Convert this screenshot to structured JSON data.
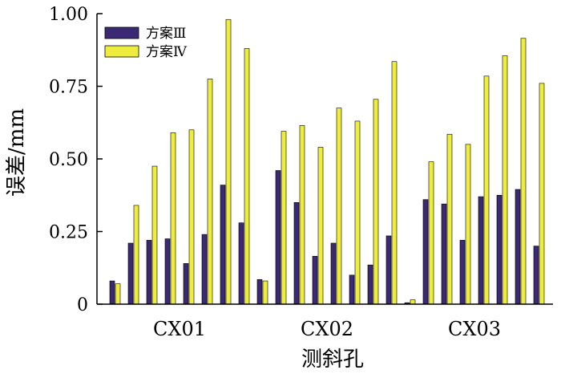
{
  "chart_data": {
    "type": "bar",
    "title": "",
    "xlabel": "测斜孔",
    "ylabel": "误差/mm",
    "ylim": [
      0,
      1.0
    ],
    "yticks": [
      "0",
      "0.25",
      "0.50",
      "0.75",
      "1.00"
    ],
    "ytick_values": [
      0,
      0.25,
      0.5,
      0.75,
      1.0
    ],
    "groups": [
      "CX01",
      "CX02",
      "CX03"
    ],
    "bars_per_group": 8,
    "grid": false,
    "legend_position": "top-left",
    "series": [
      {
        "name": "方案Ⅲ",
        "color": "#3b2a73",
        "values": [
          0.08,
          0.21,
          0.22,
          0.225,
          0.14,
          0.24,
          0.41,
          0.28,
          0.085,
          0.46,
          0.35,
          0.165,
          0.21,
          0.1,
          0.135,
          0.235,
          0.005,
          0.36,
          0.345,
          0.22,
          0.37,
          0.375,
          0.395,
          0.2
        ]
      },
      {
        "name": "方案Ⅳ",
        "color": "#eeec3c",
        "values": [
          0.07,
          0.34,
          0.475,
          0.59,
          0.6,
          0.775,
          0.98,
          0.88,
          0.08,
          0.595,
          0.615,
          0.54,
          0.675,
          0.63,
          0.705,
          0.835,
          0.015,
          0.49,
          0.585,
          0.55,
          0.785,
          0.855,
          0.915,
          0.76
        ]
      }
    ]
  }
}
